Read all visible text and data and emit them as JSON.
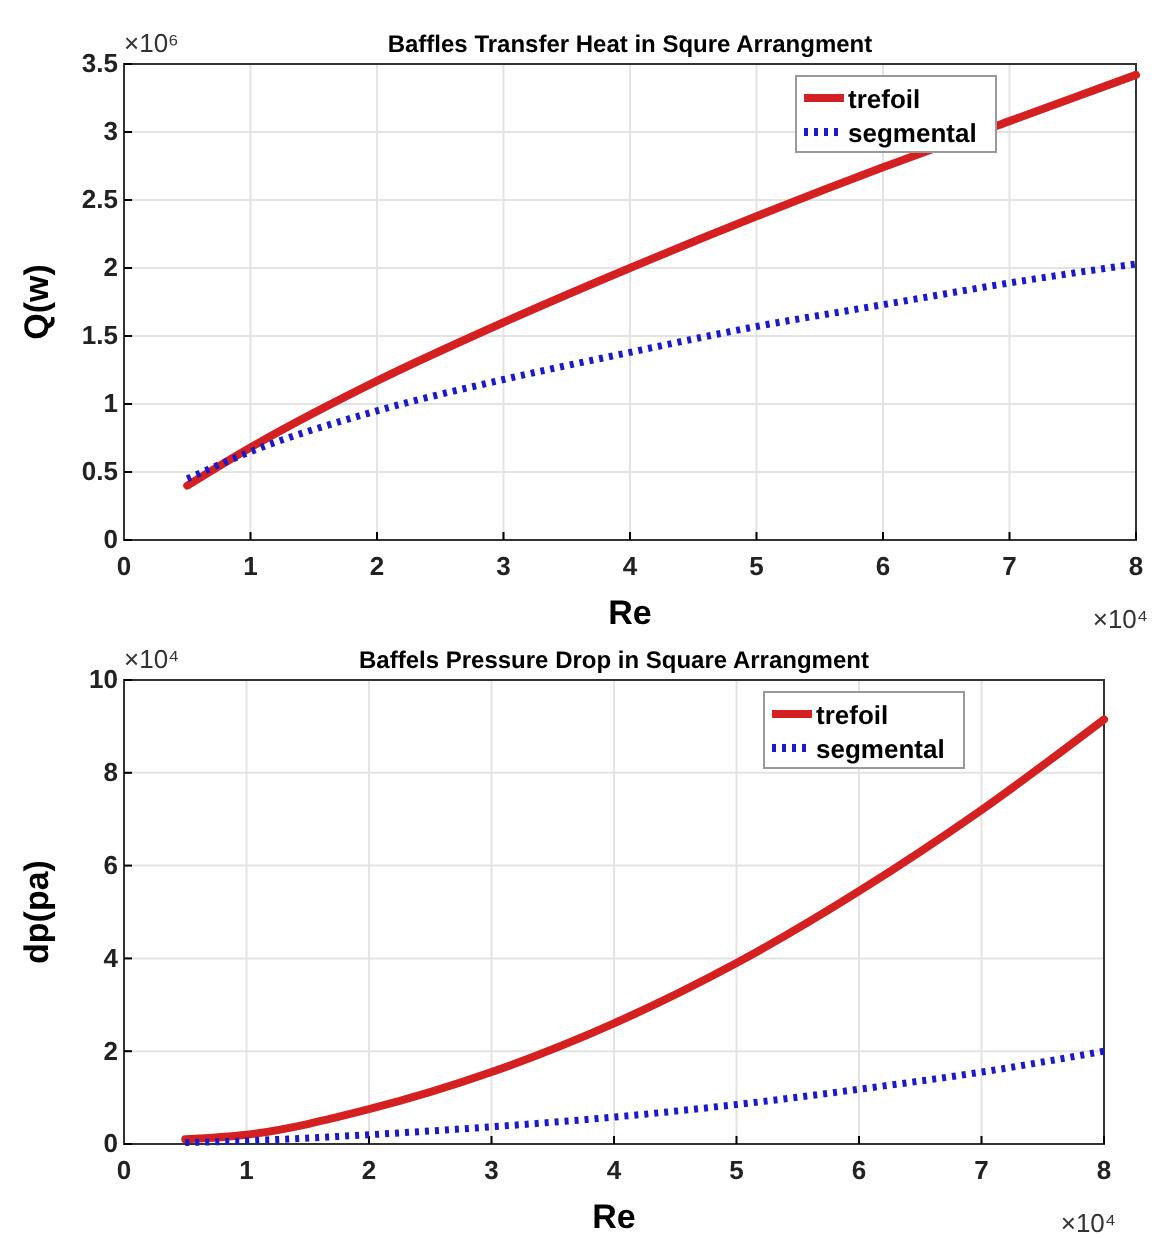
{
  "chart_data": [
    {
      "type": "line",
      "title": "Baffles Transfer Heat in Squre Arrangment",
      "xlabel": "Re",
      "ylabel": "Q(w)",
      "annotations": [
        "×10⁶",
        "×10⁴"
      ],
      "x": [
        0.5,
        1,
        2,
        3,
        4,
        5,
        6,
        7,
        8
      ],
      "series": [
        {
          "name": "trefoil",
          "color": "#d42020",
          "line_style": "solid",
          "values": [
            0.4,
            0.68,
            1.17,
            1.6,
            2.0,
            2.38,
            2.74,
            3.08,
            3.42
          ]
        },
        {
          "name": "segmental",
          "color": "#1a1acc",
          "line_style": "dotted",
          "values": [
            0.45,
            0.65,
            0.95,
            1.18,
            1.38,
            1.57,
            1.73,
            1.89,
            2.03
          ]
        }
      ],
      "xlim": [
        0,
        8
      ],
      "xticks": [
        0,
        1,
        2,
        3,
        4,
        5,
        6,
        7,
        8
      ],
      "ylim": [
        0,
        3.5
      ],
      "yticks": [
        0,
        0.5,
        1,
        1.5,
        2,
        2.5,
        3,
        3.5
      ],
      "grid": true,
      "legend": "top right"
    },
    {
      "type": "line",
      "title": "Baffels Pressure Drop in Square Arrangment",
      "xlabel": "Re",
      "ylabel": "dp(pa)",
      "annotations": [
        "×10⁴",
        "×10⁴"
      ],
      "x": [
        0.5,
        1,
        2,
        3,
        4,
        5,
        6,
        7,
        8
      ],
      "series": [
        {
          "name": "trefoil",
          "color": "#d42020",
          "line_style": "solid",
          "values": [
            0.1,
            0.2,
            0.75,
            1.55,
            2.6,
            3.9,
            5.45,
            7.2,
            9.15
          ]
        },
        {
          "name": "segmental",
          "color": "#1a1acc",
          "line_style": "dotted",
          "values": [
            0.03,
            0.07,
            0.2,
            0.37,
            0.58,
            0.85,
            1.18,
            1.55,
            2.0
          ]
        }
      ],
      "xlim": [
        0,
        8
      ],
      "xticks": [
        0,
        1,
        2,
        3,
        4,
        5,
        6,
        7,
        8
      ],
      "ylim": [
        0,
        10
      ],
      "yticks": [
        0,
        2,
        4,
        6,
        8,
        10
      ],
      "grid": true,
      "legend": "top right"
    }
  ]
}
